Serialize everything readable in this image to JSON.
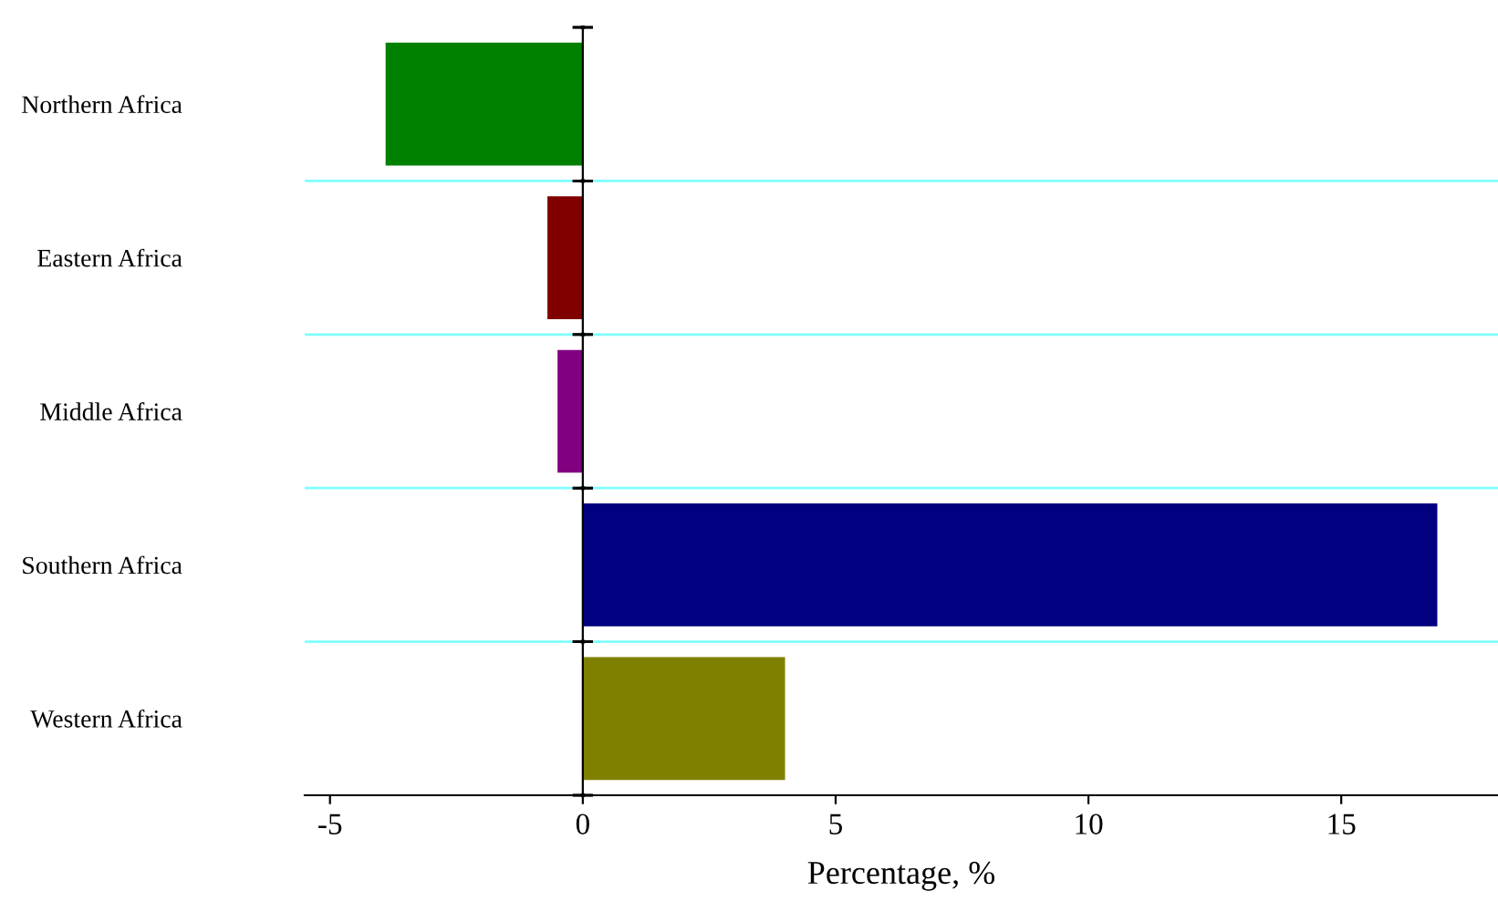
{
  "chart_data": {
    "type": "bar",
    "orientation": "horizontal",
    "xlabel": "Percentage, %",
    "categories": [
      "Northern Africa",
      "Eastern Africa",
      "Middle Africa",
      "Southern Africa",
      "Western Africa"
    ],
    "values": [
      -3.9,
      -0.7,
      -0.5,
      16.9,
      4.0
    ],
    "colors": [
      "#008000",
      "#800000",
      "#800080",
      "#000080",
      "#808000"
    ],
    "xlim": [
      -5.5,
      18.1
    ],
    "xticks": [
      -5,
      0,
      5,
      10,
      15
    ],
    "grid": "y"
  }
}
